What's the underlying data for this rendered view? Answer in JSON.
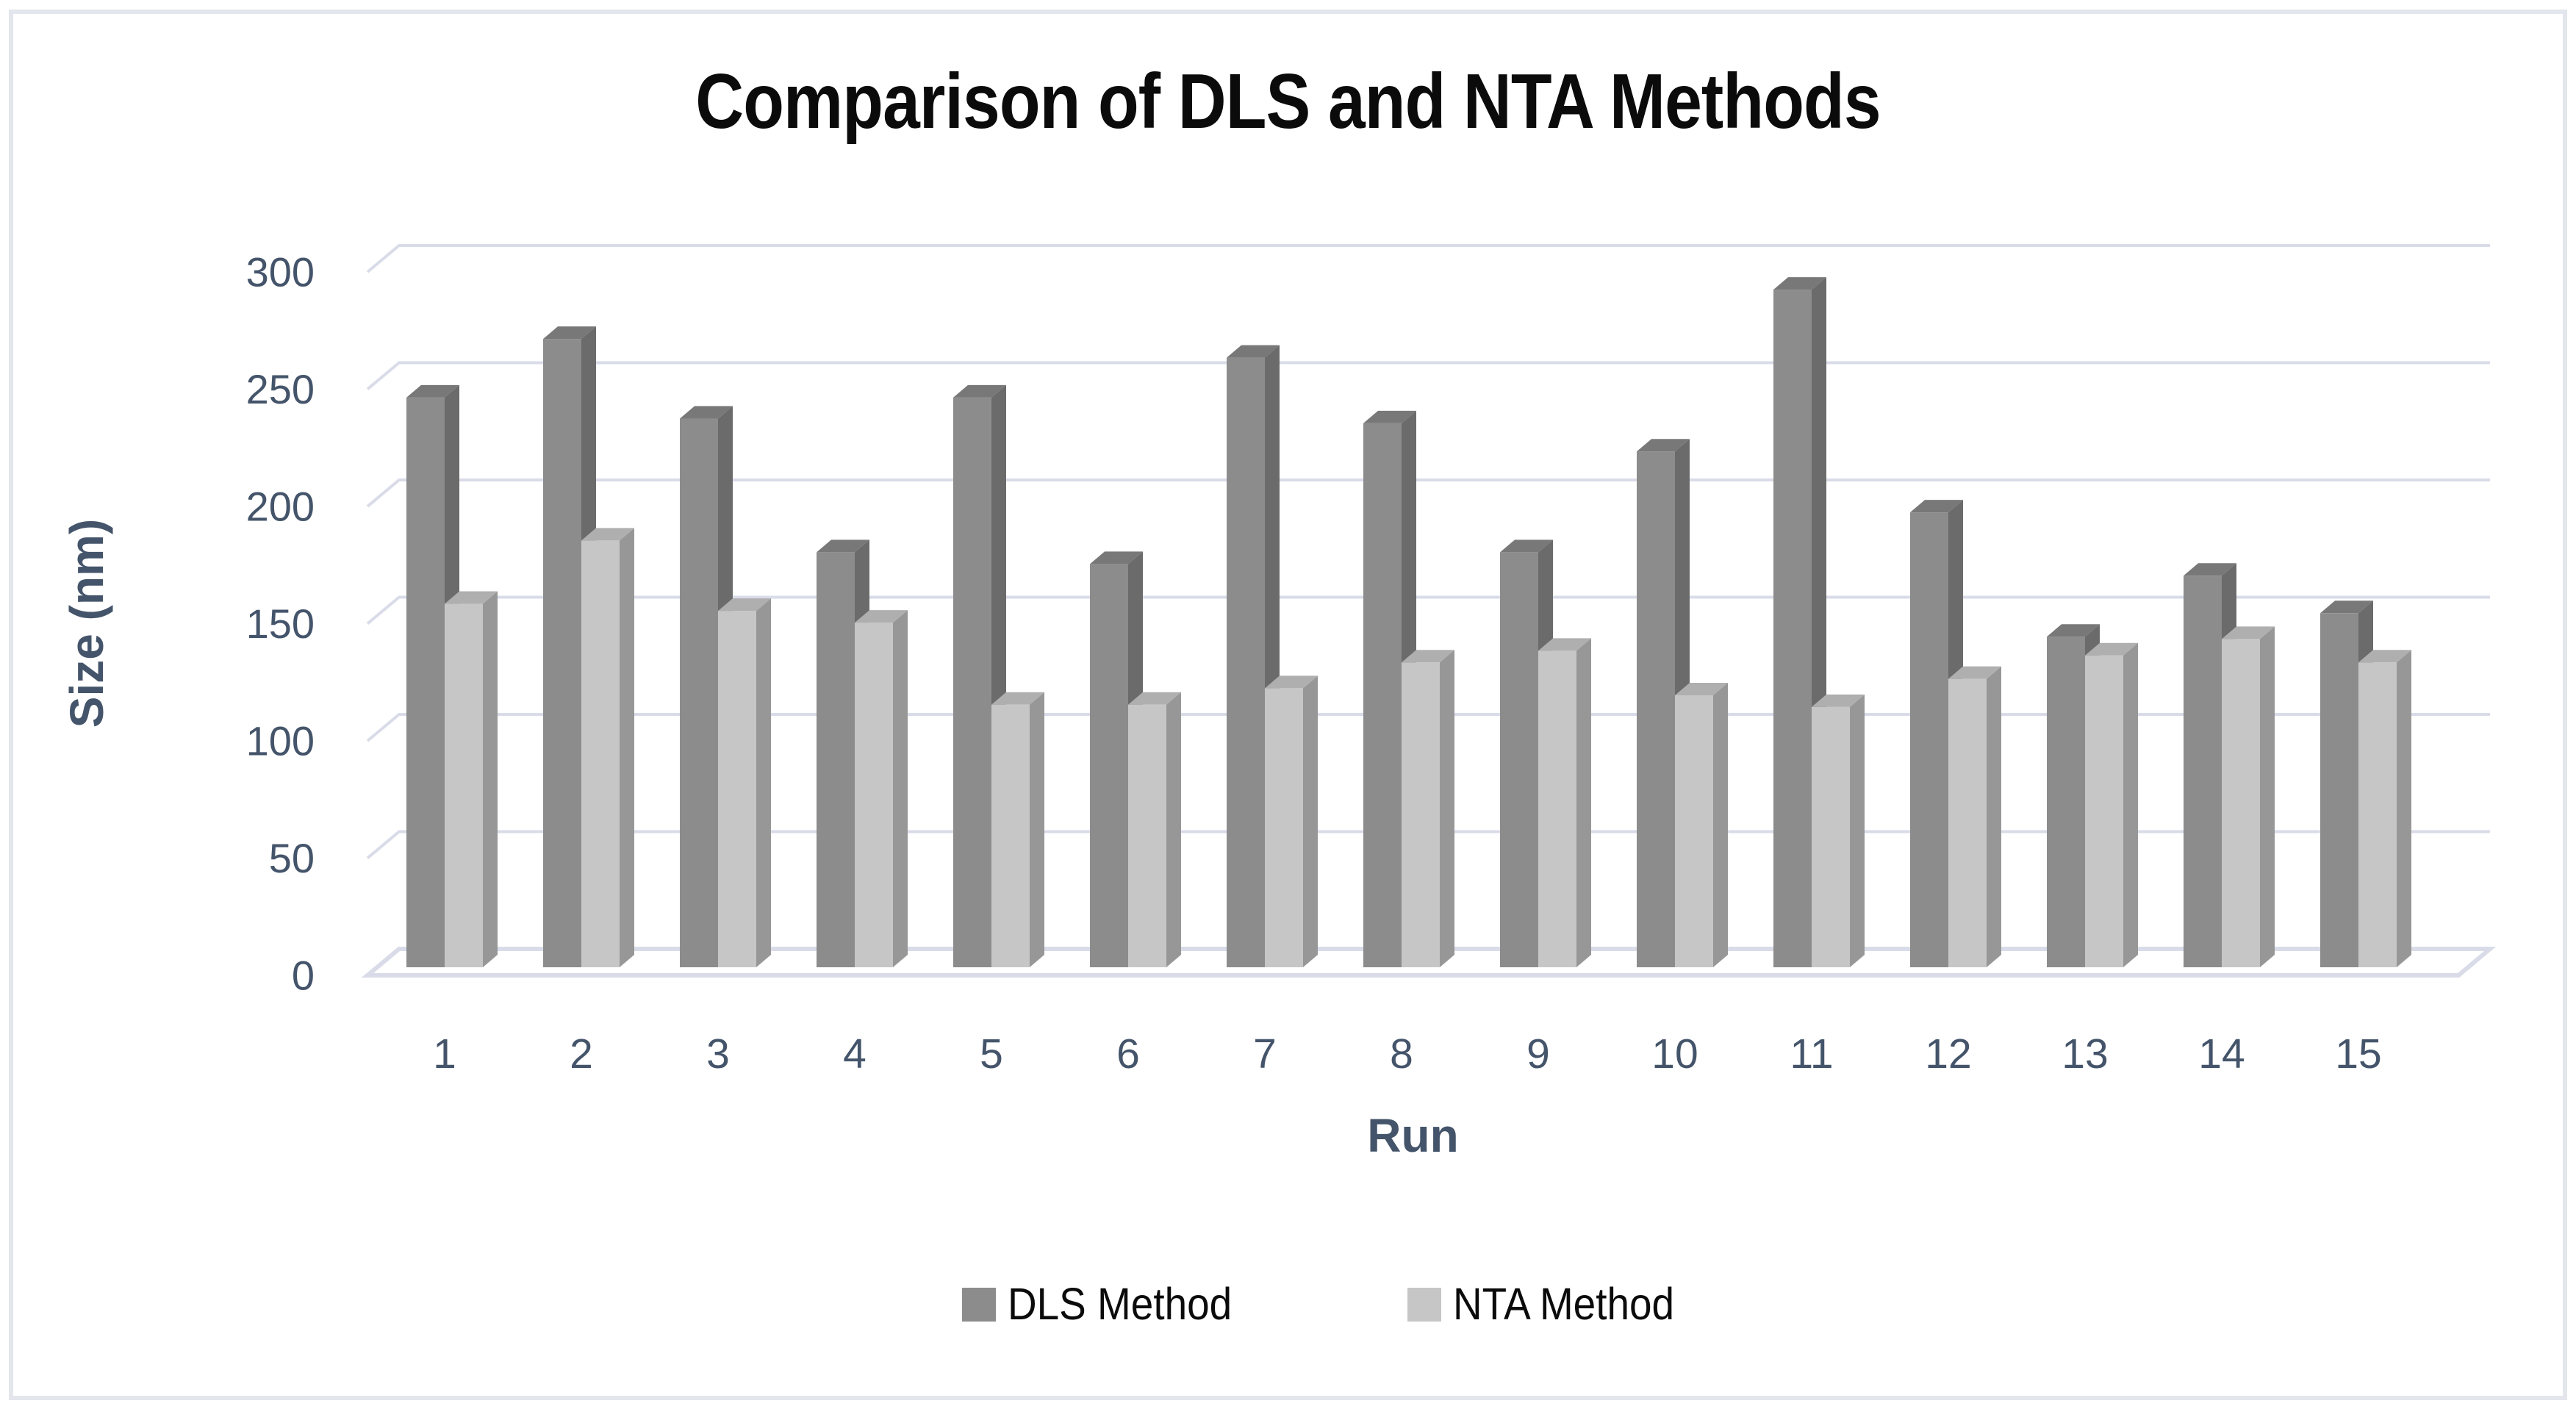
{
  "chart_data": {
    "type": "bar",
    "subtype": "3d-clustered-column",
    "title": "Comparison of DLS and NTA Methods",
    "xlabel": "Run",
    "ylabel": "Size (nm)",
    "categories": [
      "1",
      "2",
      "3",
      "4",
      "5",
      "6",
      "7",
      "8",
      "9",
      "10",
      "11",
      "12",
      "13",
      "14",
      "15"
    ],
    "series": [
      {
        "name": "DLS Method",
        "color": "#8C8C8C",
        "color_top": "#787878",
        "color_side": "#6B6B6B",
        "values": [
          243,
          268,
          234,
          177,
          243,
          172,
          260,
          232,
          177,
          220,
          289,
          194,
          141,
          167,
          151
        ]
      },
      {
        "name": "NTA Method",
        "color": "#C6C6C6",
        "color_top": "#AFAFAF",
        "color_side": "#979797",
        "values": [
          155,
          182,
          152,
          147,
          112,
          112,
          119,
          130,
          135,
          116,
          111,
          123,
          133,
          140,
          130
        ]
      }
    ],
    "ylim": [
      0,
      300
    ],
    "ytick_interval": 50,
    "yticks": [
      "0",
      "50",
      "100",
      "150",
      "200",
      "250",
      "300"
    ],
    "grid": true,
    "legend_position": "bottom"
  },
  "colors": {
    "axis_text": "#44546A",
    "title_text": "#0B0B0B",
    "gridline": "#D9DCE8",
    "floor_edge": "#D9DCE8",
    "frame_border": "#E3E6EC",
    "background": "#FFFFFF"
  }
}
